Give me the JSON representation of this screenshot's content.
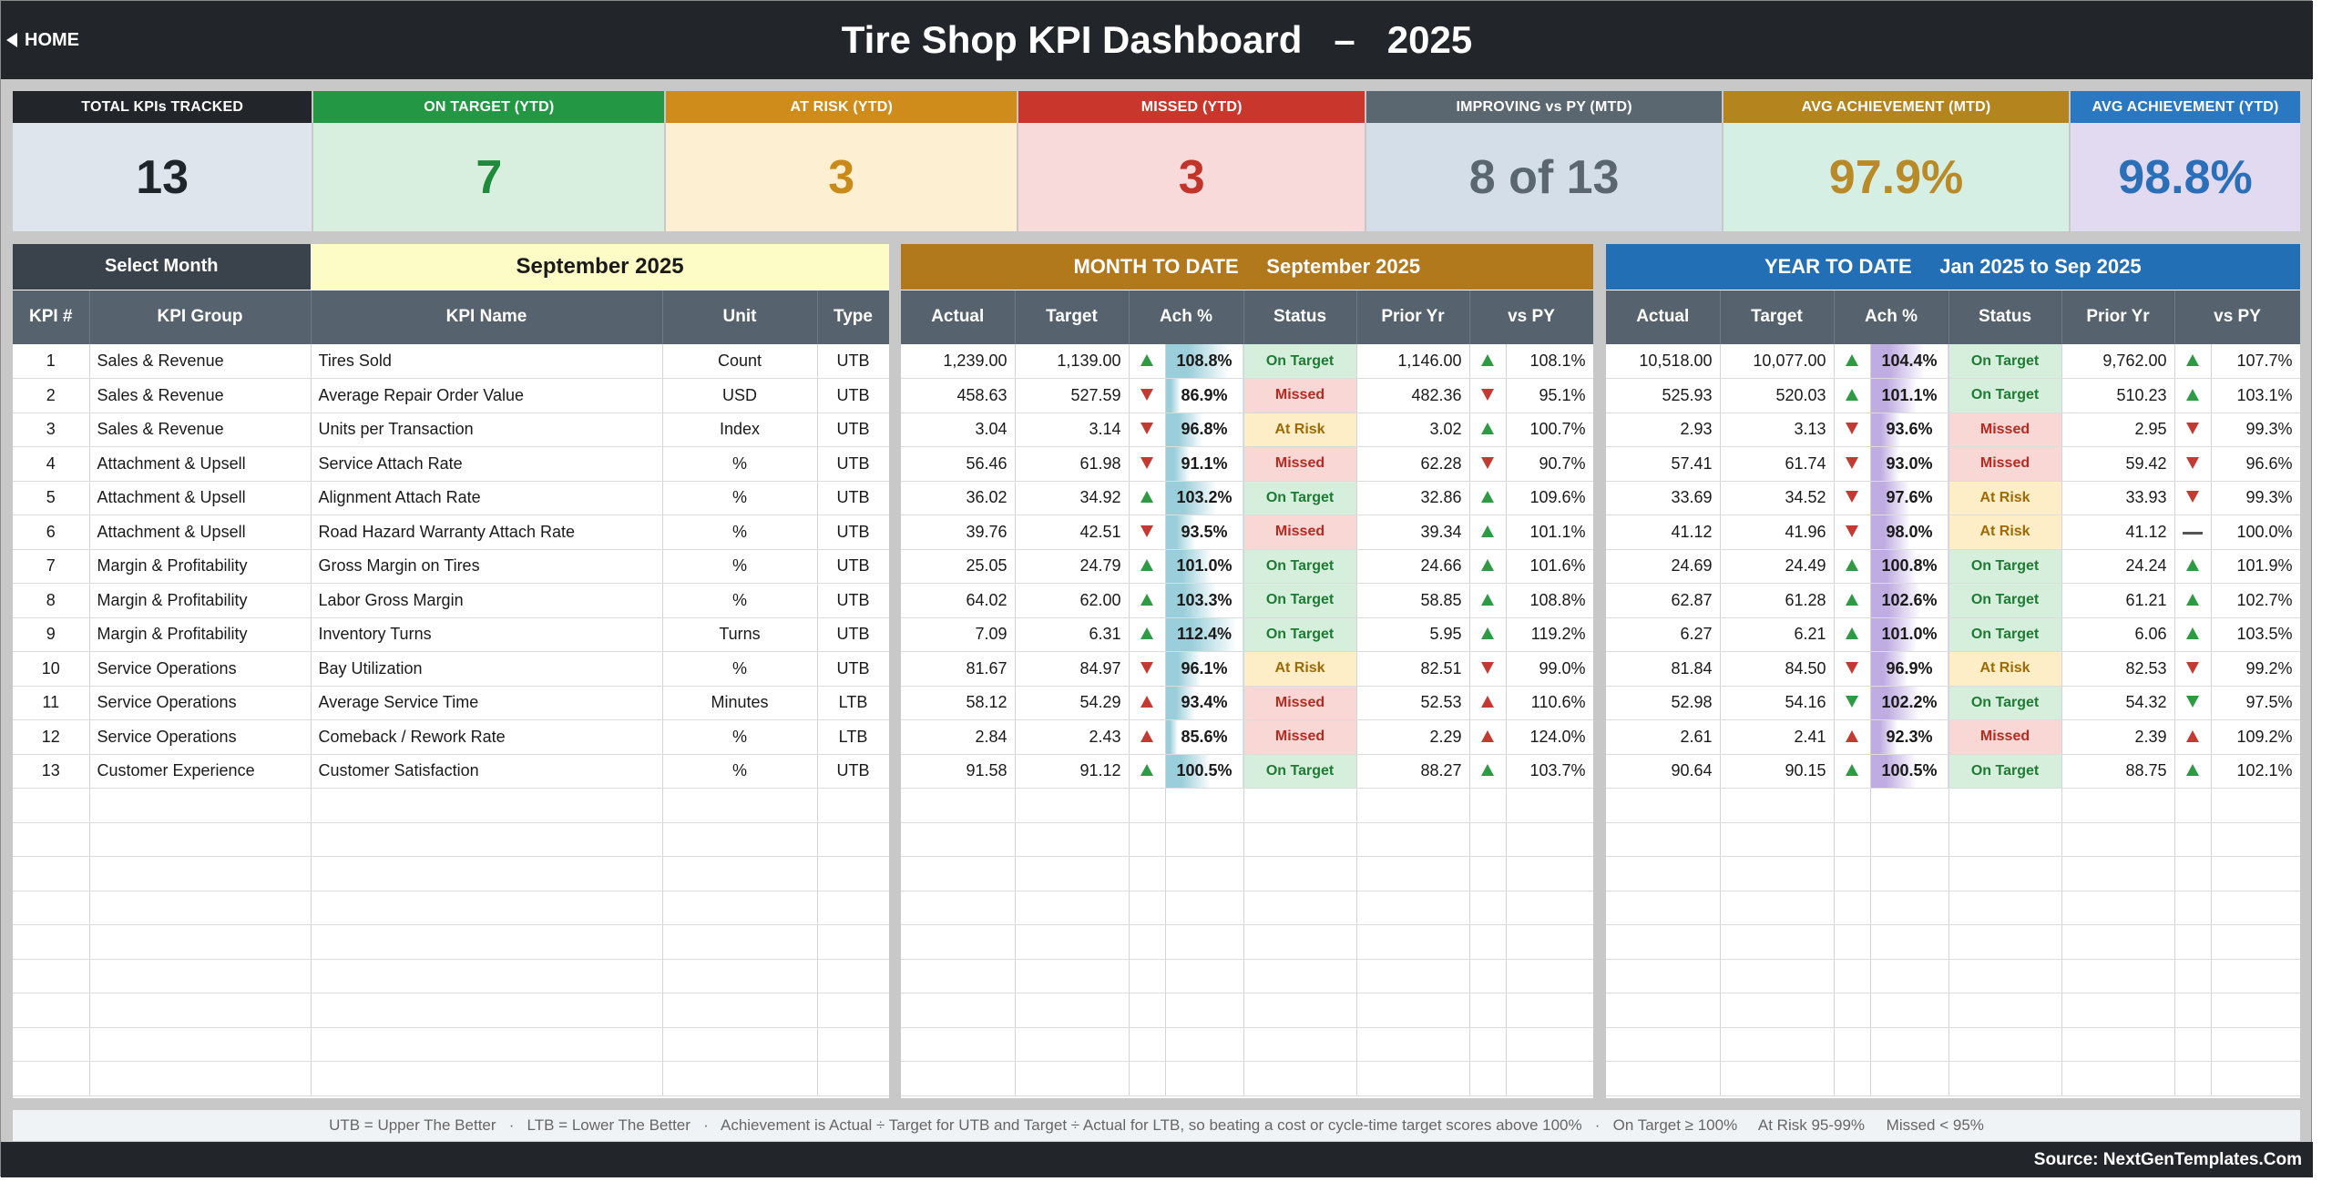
{
  "header": {
    "home_label": "HOME",
    "title": "Tire Shop KPI Dashboard   –   2025"
  },
  "kpi_cards": [
    {
      "label": "TOTAL KPIs TRACKED",
      "value": "13",
      "head_color": "#22262b",
      "body_color": "#dfe5ec",
      "value_color": "#1e252b"
    },
    {
      "label": "ON TARGET (YTD)",
      "value": "7",
      "head_color": "#239743",
      "body_color": "#d8efe0",
      "value_color": "#1f8a3c"
    },
    {
      "label": "AT RISK (YTD)",
      "value": "3",
      "head_color": "#cf8c1a",
      "body_color": "#fcefd2",
      "value_color": "#c98a1a"
    },
    {
      "label": "MISSED (YTD)",
      "value": "3",
      "head_color": "#c9372c",
      "body_color": "#f8dadb",
      "value_color": "#c2332a"
    },
    {
      "label": "IMPROVING vs PY (MTD)",
      "value": "8 of 13",
      "head_color": "#5b6770",
      "body_color": "#d3dee8",
      "value_color": "#5b6770"
    },
    {
      "label": "AVG ACHIEVEMENT (MTD)",
      "value": "97.9%",
      "head_color": "#b4841f",
      "body_color": "#d6efe4",
      "value_color": "#b98a28"
    },
    {
      "label": "AVG ACHIEVEMENT (YTD)",
      "value": "98.8%",
      "head_color": "#2b78c2",
      "body_color": "#e1daf1",
      "value_color": "#2a6fb8"
    }
  ],
  "left_panel": {
    "select_month_label": "Select Month",
    "selected_month": "September 2025",
    "columns": [
      "KPI #",
      "KPI Group",
      "KPI Name",
      "Unit",
      "Type"
    ]
  },
  "mtd_panel": {
    "title": "MONTH TO DATE",
    "period": "September 2025",
    "color": "#b1781c",
    "columns": [
      "Actual",
      "Target",
      "Ach %",
      "Status",
      "Prior Yr",
      "vs PY"
    ]
  },
  "ytd_panel": {
    "title": "YEAR TO DATE",
    "period": "Jan 2025  to  Sep 2025",
    "color": "#236fb6",
    "columns": [
      "Actual",
      "Target",
      "Ach %",
      "Status",
      "Prior Yr",
      "vs PY"
    ]
  },
  "rows": [
    {
      "num": "1",
      "group": "Sales & Revenue",
      "name": "Tires Sold",
      "unit": "Count",
      "type": "UTB",
      "mtd": {
        "actual": "1,239.00",
        "target": "1,139.00",
        "ach_dir": "up",
        "ach": "108.8%",
        "ach_pct": 108.8,
        "status": "On Target",
        "prior": "1,146.00",
        "vs_dir": "up",
        "vs": "108.1%"
      },
      "ytd": {
        "actual": "10,518.00",
        "target": "10,077.00",
        "ach_dir": "up",
        "ach": "104.4%",
        "ach_pct": 104.4,
        "status": "On Target",
        "prior": "9,762.00",
        "vs_dir": "up",
        "vs": "107.7%"
      }
    },
    {
      "num": "2",
      "group": "Sales & Revenue",
      "name": "Average Repair Order Value",
      "unit": "USD",
      "type": "UTB",
      "mtd": {
        "actual": "458.63",
        "target": "527.59",
        "ach_dir": "down",
        "ach": "86.9%",
        "ach_pct": 86.9,
        "status": "Missed",
        "prior": "482.36",
        "vs_dir": "down",
        "vs": "95.1%"
      },
      "ytd": {
        "actual": "525.93",
        "target": "520.03",
        "ach_dir": "up",
        "ach": "101.1%",
        "ach_pct": 101.1,
        "status": "On Target",
        "prior": "510.23",
        "vs_dir": "up",
        "vs": "103.1%"
      }
    },
    {
      "num": "3",
      "group": "Sales & Revenue",
      "name": "Units per Transaction",
      "unit": "Index",
      "type": "UTB",
      "mtd": {
        "actual": "3.04",
        "target": "3.14",
        "ach_dir": "down",
        "ach": "96.8%",
        "ach_pct": 96.8,
        "status": "At Risk",
        "prior": "3.02",
        "vs_dir": "up",
        "vs": "100.7%"
      },
      "ytd": {
        "actual": "2.93",
        "target": "3.13",
        "ach_dir": "down",
        "ach": "93.6%",
        "ach_pct": 93.6,
        "status": "Missed",
        "prior": "2.95",
        "vs_dir": "down",
        "vs": "99.3%"
      }
    },
    {
      "num": "4",
      "group": "Attachment & Upsell",
      "name": "Service Attach Rate",
      "unit": "%",
      "type": "UTB",
      "mtd": {
        "actual": "56.46",
        "target": "61.98",
        "ach_dir": "down",
        "ach": "91.1%",
        "ach_pct": 91.1,
        "status": "Missed",
        "prior": "62.28",
        "vs_dir": "down",
        "vs": "90.7%"
      },
      "ytd": {
        "actual": "57.41",
        "target": "61.74",
        "ach_dir": "down",
        "ach": "93.0%",
        "ach_pct": 93.0,
        "status": "Missed",
        "prior": "59.42",
        "vs_dir": "down",
        "vs": "96.6%"
      }
    },
    {
      "num": "5",
      "group": "Attachment & Upsell",
      "name": "Alignment Attach Rate",
      "unit": "%",
      "type": "UTB",
      "mtd": {
        "actual": "36.02",
        "target": "34.92",
        "ach_dir": "up",
        "ach": "103.2%",
        "ach_pct": 103.2,
        "status": "On Target",
        "prior": "32.86",
        "vs_dir": "up",
        "vs": "109.6%"
      },
      "ytd": {
        "actual": "33.69",
        "target": "34.52",
        "ach_dir": "down",
        "ach": "97.6%",
        "ach_pct": 97.6,
        "status": "At Risk",
        "prior": "33.93",
        "vs_dir": "down",
        "vs": "99.3%"
      }
    },
    {
      "num": "6",
      "group": "Attachment & Upsell",
      "name": "Road Hazard Warranty Attach Rate",
      "unit": "%",
      "type": "UTB",
      "mtd": {
        "actual": "39.76",
        "target": "42.51",
        "ach_dir": "down",
        "ach": "93.5%",
        "ach_pct": 93.5,
        "status": "Missed",
        "prior": "39.34",
        "vs_dir": "up",
        "vs": "101.1%"
      },
      "ytd": {
        "actual": "41.12",
        "target": "41.96",
        "ach_dir": "down",
        "ach": "98.0%",
        "ach_pct": 98.0,
        "status": "At Risk",
        "prior": "41.12",
        "vs_dir": "flat",
        "vs": "100.0%"
      }
    },
    {
      "num": "7",
      "group": "Margin & Profitability",
      "name": "Gross Margin on Tires",
      "unit": "%",
      "type": "UTB",
      "mtd": {
        "actual": "25.05",
        "target": "24.79",
        "ach_dir": "up",
        "ach": "101.0%",
        "ach_pct": 101.0,
        "status": "On Target",
        "prior": "24.66",
        "vs_dir": "up",
        "vs": "101.6%"
      },
      "ytd": {
        "actual": "24.69",
        "target": "24.49",
        "ach_dir": "up",
        "ach": "100.8%",
        "ach_pct": 100.8,
        "status": "On Target",
        "prior": "24.24",
        "vs_dir": "up",
        "vs": "101.9%"
      }
    },
    {
      "num": "8",
      "group": "Margin & Profitability",
      "name": "Labor Gross Margin",
      "unit": "%",
      "type": "UTB",
      "mtd": {
        "actual": "64.02",
        "target": "62.00",
        "ach_dir": "up",
        "ach": "103.3%",
        "ach_pct": 103.3,
        "status": "On Target",
        "prior": "58.85",
        "vs_dir": "up",
        "vs": "108.8%"
      },
      "ytd": {
        "actual": "62.87",
        "target": "61.28",
        "ach_dir": "up",
        "ach": "102.6%",
        "ach_pct": 102.6,
        "status": "On Target",
        "prior": "61.21",
        "vs_dir": "up",
        "vs": "102.7%"
      }
    },
    {
      "num": "9",
      "group": "Margin & Profitability",
      "name": "Inventory Turns",
      "unit": "Turns",
      "type": "UTB",
      "mtd": {
        "actual": "7.09",
        "target": "6.31",
        "ach_dir": "up",
        "ach": "112.4%",
        "ach_pct": 112.4,
        "status": "On Target",
        "prior": "5.95",
        "vs_dir": "up",
        "vs": "119.2%"
      },
      "ytd": {
        "actual": "6.27",
        "target": "6.21",
        "ach_dir": "up",
        "ach": "101.0%",
        "ach_pct": 101.0,
        "status": "On Target",
        "prior": "6.06",
        "vs_dir": "up",
        "vs": "103.5%"
      }
    },
    {
      "num": "10",
      "group": "Service Operations",
      "name": "Bay Utilization",
      "unit": "%",
      "type": "UTB",
      "mtd": {
        "actual": "81.67",
        "target": "84.97",
        "ach_dir": "down",
        "ach": "96.1%",
        "ach_pct": 96.1,
        "status": "At Risk",
        "prior": "82.51",
        "vs_dir": "down",
        "vs": "99.0%"
      },
      "ytd": {
        "actual": "81.84",
        "target": "84.50",
        "ach_dir": "down",
        "ach": "96.9%",
        "ach_pct": 96.9,
        "status": "At Risk",
        "prior": "82.53",
        "vs_dir": "down",
        "vs": "99.2%"
      }
    },
    {
      "num": "11",
      "group": "Service Operations",
      "name": "Average Service Time",
      "unit": "Minutes",
      "type": "LTB",
      "mtd": {
        "actual": "58.12",
        "target": "54.29",
        "ach_dir": "upbad",
        "ach": "93.4%",
        "ach_pct": 93.4,
        "status": "Missed",
        "prior": "52.53",
        "vs_dir": "upbad",
        "vs": "110.6%"
      },
      "ytd": {
        "actual": "52.98",
        "target": "54.16",
        "ach_dir": "downgood",
        "ach": "102.2%",
        "ach_pct": 102.2,
        "status": "On Target",
        "prior": "54.32",
        "vs_dir": "downgood",
        "vs": "97.5%"
      }
    },
    {
      "num": "12",
      "group": "Service Operations",
      "name": "Comeback / Rework Rate",
      "unit": "%",
      "type": "LTB",
      "mtd": {
        "actual": "2.84",
        "target": "2.43",
        "ach_dir": "upbad",
        "ach": "85.6%",
        "ach_pct": 85.6,
        "status": "Missed",
        "prior": "2.29",
        "vs_dir": "upbad",
        "vs": "124.0%"
      },
      "ytd": {
        "actual": "2.61",
        "target": "2.41",
        "ach_dir": "upbad",
        "ach": "92.3%",
        "ach_pct": 92.3,
        "status": "Missed",
        "prior": "2.39",
        "vs_dir": "upbad",
        "vs": "109.2%"
      }
    },
    {
      "num": "13",
      "group": "Customer Experience",
      "name": "Customer Satisfaction",
      "unit": "%",
      "type": "UTB",
      "mtd": {
        "actual": "91.58",
        "target": "91.12",
        "ach_dir": "up",
        "ach": "100.5%",
        "ach_pct": 100.5,
        "status": "On Target",
        "prior": "88.27",
        "vs_dir": "up",
        "vs": "103.7%"
      },
      "ytd": {
        "actual": "90.64",
        "target": "90.15",
        "ach_dir": "up",
        "ach": "100.5%",
        "ach_pct": 100.5,
        "status": "On Target",
        "prior": "88.75",
        "vs_dir": "up",
        "vs": "102.1%"
      }
    }
  ],
  "empty_rows": 9,
  "legend": "UTB = Upper The Better   ·   LTB = Lower The Better   ·   Achievement is Actual ÷ Target for UTB and Target ÷ Actual for LTB, so beating a cost or cycle-time target scores above 100%   ·   On Target ≥ 100%     At Risk 95-99%     Missed < 95%",
  "source": "Source: NextGenTemplates.Com"
}
